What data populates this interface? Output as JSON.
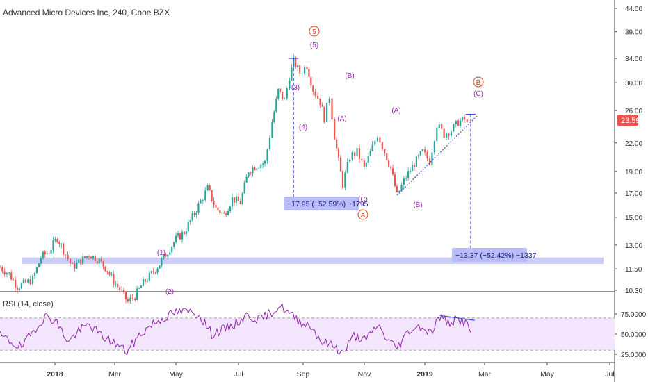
{
  "header": {
    "title": "Advanced Micro Devices Inc, 240, Cboe BZX"
  },
  "price_axis": {
    "ticks": [
      "44.00",
      "39.00",
      "34.00",
      "30.00",
      "26.00",
      "22.00",
      "19.00",
      "17.00",
      "15.00",
      "13.00",
      "11.50",
      "10.30"
    ],
    "tick_values": [
      44,
      39,
      34,
      30,
      26,
      22,
      19,
      17,
      15,
      13,
      11.5,
      10.3
    ],
    "last_price": "23.59",
    "last_price_value": 23.59,
    "scale": "log"
  },
  "time_axis": {
    "labels": [
      "2018",
      "Mar",
      "May",
      "Jul",
      "Sep",
      "Nov",
      "2019",
      "Mar",
      "May",
      "Jul"
    ],
    "bold": [
      "2018",
      "2019"
    ]
  },
  "rsi": {
    "label": "RSI (14, close)",
    "ticks": [
      "75.0000",
      "50.0000",
      "25.0000"
    ],
    "tick_values": [
      75,
      50,
      25
    ],
    "upper_band": 70,
    "lower_band": 30
  },
  "wave_labels": {
    "circled_5": "5",
    "w5": "(5)",
    "w3": "(3)",
    "w4": "(4)",
    "w1": "(1)",
    "w2": "(2)",
    "wB_top": "(B)",
    "wA_top": "(A)",
    "wC_bottom": "(C)",
    "circled_A": "A",
    "wA_mid": "(A)",
    "wB_mid": "(B)",
    "circled_B": "B",
    "wC_top": "(C)"
  },
  "measurements": {
    "first": "−17.95 (−52.59%) −1795",
    "second": "−13.37 (−52.42%) −1337"
  },
  "colors": {
    "candle_up": "#26a69a",
    "candle_down": "#ef5350",
    "wave_purple": "#9c27b0",
    "circle_red": "#d84315",
    "support_band": "#c5c8f5",
    "measure_box": "#b9bdf6",
    "measure_line": "#3f51d8",
    "rsi_line": "#8e24aa",
    "rsi_band": "#f3e5fb",
    "last_price_bg": "#ef5350"
  },
  "chart_data": {
    "type": "candlestick",
    "title": "Advanced Micro Devices Inc, 240, Cboe BZX",
    "y_scale": "log",
    "ylim": [
      9.6,
      45
    ],
    "close_path": [
      {
        "x": "2017-12-01",
        "y": 11.6
      },
      {
        "x": "2017-12-10",
        "y": 11.2
      },
      {
        "x": "2017-12-18",
        "y": 10.5
      },
      {
        "x": "2017-12-26",
        "y": 10.7
      },
      {
        "x": "2018-01-02",
        "y": 10.9
      },
      {
        "x": "2018-01-10",
        "y": 12.2
      },
      {
        "x": "2018-01-18",
        "y": 12.6
      },
      {
        "x": "2018-01-26",
        "y": 13.5
      },
      {
        "x": "2018-02-03",
        "y": 12.4
      },
      {
        "x": "2018-02-10",
        "y": 11.6
      },
      {
        "x": "2018-02-18",
        "y": 12.0
      },
      {
        "x": "2018-02-26",
        "y": 12.4
      },
      {
        "x": "2018-03-06",
        "y": 12.1
      },
      {
        "x": "2018-03-14",
        "y": 11.6
      },
      {
        "x": "2018-03-22",
        "y": 10.8
      },
      {
        "x": "2018-03-30",
        "y": 10.2
      },
      {
        "x": "2018-04-05",
        "y": 9.7
      },
      {
        "x": "2018-04-12",
        "y": 10.0
      },
      {
        "x": "2018-04-20",
        "y": 10.7
      },
      {
        "x": "2018-04-28",
        "y": 11.2
      },
      {
        "x": "2018-05-06",
        "y": 11.8
      },
      {
        "x": "2018-05-14",
        "y": 12.6
      },
      {
        "x": "2018-05-22",
        "y": 13.4
      },
      {
        "x": "2018-05-30",
        "y": 13.9
      },
      {
        "x": "2018-06-07",
        "y": 15.0
      },
      {
        "x": "2018-06-15",
        "y": 16.3
      },
      {
        "x": "2018-06-22",
        "y": 17.4
      },
      {
        "x": "2018-06-30",
        "y": 15.7
      },
      {
        "x": "2018-07-08",
        "y": 15.2
      },
      {
        "x": "2018-07-16",
        "y": 16.5
      },
      {
        "x": "2018-07-24",
        "y": 16.2
      },
      {
        "x": "2018-08-01",
        "y": 19.1
      },
      {
        "x": "2018-08-09",
        "y": 19.6
      },
      {
        "x": "2018-08-17",
        "y": 19.9
      },
      {
        "x": "2018-08-24",
        "y": 24.5
      },
      {
        "x": "2018-08-30",
        "y": 28.8
      },
      {
        "x": "2018-09-05",
        "y": 27.4
      },
      {
        "x": "2018-09-10",
        "y": 31.0
      },
      {
        "x": "2018-09-14",
        "y": 33.5
      },
      {
        "x": "2018-09-20",
        "y": 31.6
      },
      {
        "x": "2018-09-27",
        "y": 32.8
      },
      {
        "x": "2018-10-03",
        "y": 29.0
      },
      {
        "x": "2018-10-10",
        "y": 27.2
      },
      {
        "x": "2018-10-14",
        "y": 25.0
      },
      {
        "x": "2018-10-19",
        "y": 28.0
      },
      {
        "x": "2018-10-24",
        "y": 22.8
      },
      {
        "x": "2018-10-28",
        "y": 20.0
      },
      {
        "x": "2018-11-01",
        "y": 17.8
      },
      {
        "x": "2018-11-08",
        "y": 20.5
      },
      {
        "x": "2018-11-15",
        "y": 21.0
      },
      {
        "x": "2018-11-22",
        "y": 19.3
      },
      {
        "x": "2018-11-30",
        "y": 21.5
      },
      {
        "x": "2018-12-05",
        "y": 23.0
      },
      {
        "x": "2018-12-12",
        "y": 21.0
      },
      {
        "x": "2018-12-18",
        "y": 19.3
      },
      {
        "x": "2018-12-24",
        "y": 16.8
      },
      {
        "x": "2019-01-02",
        "y": 18.5
      },
      {
        "x": "2019-01-10",
        "y": 19.8
      },
      {
        "x": "2019-01-18",
        "y": 21.0
      },
      {
        "x": "2019-01-25",
        "y": 20.0
      },
      {
        "x": "2019-02-01",
        "y": 24.2
      },
      {
        "x": "2019-02-08",
        "y": 23.0
      },
      {
        "x": "2019-02-15",
        "y": 23.5
      },
      {
        "x": "2019-02-22",
        "y": 24.5
      },
      {
        "x": "2019-02-28",
        "y": 24.8
      },
      {
        "x": "2019-03-05",
        "y": 23.6
      }
    ],
    "support_band": {
      "low": 11.8,
      "high": 12.2
    },
    "trendline": [
      {
        "x": "2018-12-24",
        "y": 16.8
      },
      {
        "x": "2019-03-06",
        "y": 25.0
      }
    ],
    "measures": [
      {
        "from": {
          "x": "2018-09-14",
          "y": 34.0
        },
        "to": {
          "x": "2018-09-14",
          "y": 16.1
        }
      },
      {
        "from": {
          "x": "2019-03-06",
          "y": 25.5
        },
        "to": {
          "x": "2019-03-06",
          "y": 12.1
        }
      }
    ],
    "rsi": [
      {
        "x": "2017-12-01",
        "y": 48
      },
      {
        "x": "2017-12-12",
        "y": 40
      },
      {
        "x": "2017-12-22",
        "y": 33
      },
      {
        "x": "2018-01-05",
        "y": 58
      },
      {
        "x": "2018-01-14",
        "y": 72
      },
      {
        "x": "2018-01-24",
        "y": 67
      },
      {
        "x": "2018-02-06",
        "y": 40
      },
      {
        "x": "2018-02-14",
        "y": 52
      },
      {
        "x": "2018-02-26",
        "y": 62
      },
      {
        "x": "2018-03-10",
        "y": 48
      },
      {
        "x": "2018-03-24",
        "y": 38
      },
      {
        "x": "2018-04-04",
        "y": 28
      },
      {
        "x": "2018-04-16",
        "y": 48
      },
      {
        "x": "2018-04-28",
        "y": 62
      },
      {
        "x": "2018-05-10",
        "y": 70
      },
      {
        "x": "2018-05-22",
        "y": 77
      },
      {
        "x": "2018-06-03",
        "y": 78
      },
      {
        "x": "2018-06-14",
        "y": 74
      },
      {
        "x": "2018-06-26",
        "y": 50
      },
      {
        "x": "2018-07-06",
        "y": 55
      },
      {
        "x": "2018-07-18",
        "y": 62
      },
      {
        "x": "2018-07-30",
        "y": 73
      },
      {
        "x": "2018-08-12",
        "y": 68
      },
      {
        "x": "2018-08-22",
        "y": 76
      },
      {
        "x": "2018-09-01",
        "y": 85
      },
      {
        "x": "2018-09-10",
        "y": 75
      },
      {
        "x": "2018-09-20",
        "y": 66
      },
      {
        "x": "2018-10-01",
        "y": 60
      },
      {
        "x": "2018-10-12",
        "y": 40
      },
      {
        "x": "2018-10-24",
        "y": 35
      },
      {
        "x": "2018-11-01",
        "y": 26
      },
      {
        "x": "2018-11-12",
        "y": 48
      },
      {
        "x": "2018-11-24",
        "y": 42
      },
      {
        "x": "2018-12-05",
        "y": 62
      },
      {
        "x": "2018-12-14",
        "y": 44
      },
      {
        "x": "2018-12-24",
        "y": 33
      },
      {
        "x": "2019-01-05",
        "y": 55
      },
      {
        "x": "2019-01-16",
        "y": 60
      },
      {
        "x": "2019-01-26",
        "y": 52
      },
      {
        "x": "2019-02-04",
        "y": 72
      },
      {
        "x": "2019-02-12",
        "y": 64
      },
      {
        "x": "2019-02-22",
        "y": 68
      },
      {
        "x": "2019-03-01",
        "y": 65
      },
      {
        "x": "2019-03-06",
        "y": 52
      }
    ],
    "rsi_divergence": [
      {
        "x": "2019-02-04",
        "y": 73
      },
      {
        "x": "2019-03-10",
        "y": 67
      }
    ]
  }
}
